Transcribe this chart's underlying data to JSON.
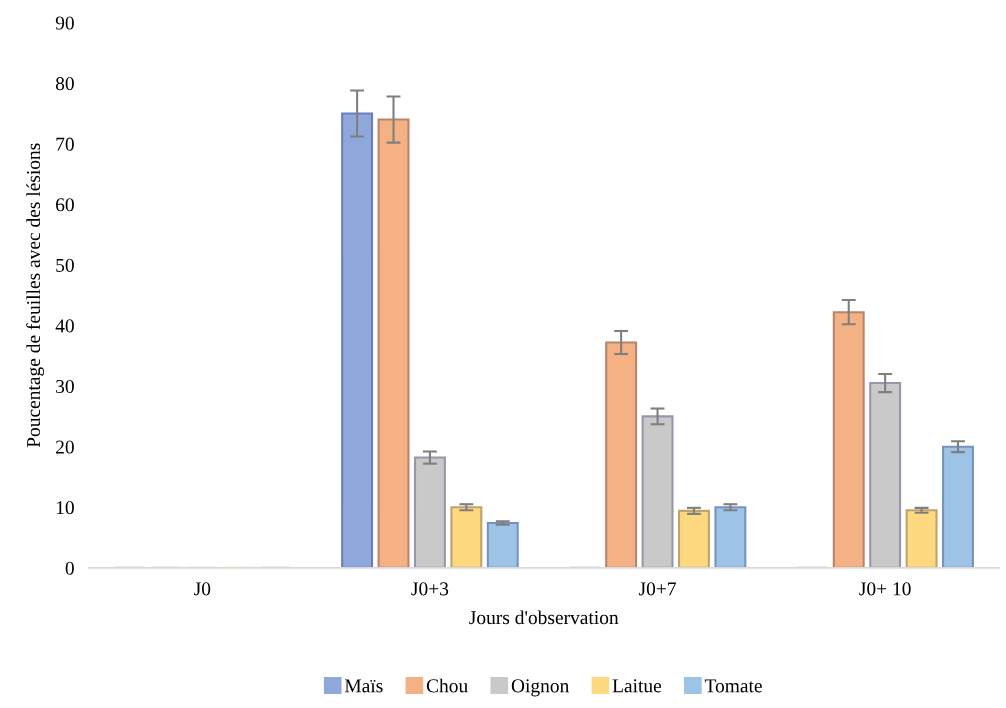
{
  "chart_data": {
    "type": "bar",
    "xlabel": "Jours d'observation",
    "ylabel": "Poucentage de feuilles avec des lésions",
    "categories": [
      "J0",
      "J0+3",
      "J0+7",
      "J0+ 10"
    ],
    "series": [
      {
        "name": "Maïs",
        "color": "#8fa8dc",
        "values": [
          0,
          75,
          0,
          0
        ],
        "errors": [
          null,
          3.8,
          null,
          null
        ]
      },
      {
        "name": "Chou",
        "color": "#f4b183",
        "values": [
          0,
          74,
          37.2,
          42.2
        ],
        "errors": [
          null,
          3.8,
          1.9,
          2
        ]
      },
      {
        "name": "Oignon",
        "color": "#c9c9c9",
        "values": [
          0,
          18.2,
          25,
          30.5
        ],
        "errors": [
          null,
          1,
          1.3,
          1.5
        ]
      },
      {
        "name": "Laitue",
        "color": "#ffd980",
        "values": [
          0,
          10,
          9.4,
          9.5
        ],
        "errors": [
          null,
          0.5,
          0.5,
          0.4
        ]
      },
      {
        "name": "Tomate",
        "color": "#9dc3e6",
        "values": [
          0,
          7.4,
          10,
          20
        ],
        "errors": [
          null,
          0.3,
          0.5,
          0.9
        ]
      }
    ],
    "ylim": [
      0,
      90
    ],
    "yticks": [
      0,
      10,
      20,
      30,
      40,
      50,
      60,
      70,
      80,
      90
    ],
    "grid": false,
    "legend": "bottom"
  }
}
